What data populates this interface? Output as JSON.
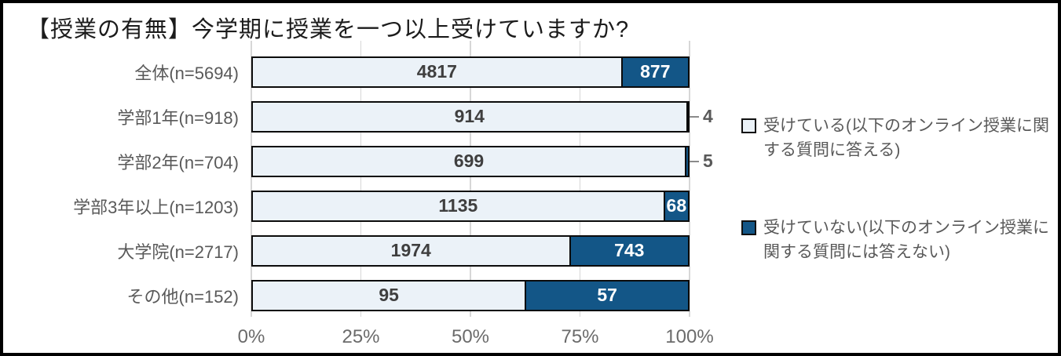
{
  "chart_data": {
    "type": "bar",
    "subtype": "horizontal-stacked-100pct",
    "title": "【授業の有無】今学期に授業を一つ以上受けていますか?",
    "categories": [
      "全体(n=5694)",
      "学部1年(n=918)",
      "学部2年(n=704)",
      "学部3年以上(n=1203)",
      "大学院(n=2717)",
      "その他(n=152)"
    ],
    "totals": [
      5694,
      918,
      704,
      1203,
      2717,
      152
    ],
    "series": [
      {
        "name": "受けている(以下のオンライン授業に関する質問に答える)",
        "values": [
          4817,
          914,
          699,
          1135,
          1974,
          95
        ],
        "color": "#ebf2f8",
        "label_color": "#3f3f3f"
      },
      {
        "name": "受けていない(以下のオンライン授業に関する質問には答えない)",
        "values": [
          877,
          4,
          5,
          68,
          743,
          57
        ],
        "color": "#135687",
        "label_color": "#ffffff"
      }
    ],
    "x_ticks": [
      "0%",
      "25%",
      "50%",
      "75%",
      "100%"
    ],
    "xlim": [
      0,
      100
    ],
    "grid": true,
    "legend_position": "right",
    "outside_labels": [
      {
        "category_index": 1,
        "value": 4
      },
      {
        "category_index": 2,
        "value": 5
      }
    ]
  },
  "style_colors": {
    "bar_border": "#0b0b0b",
    "gridline": "#d7d7d7",
    "axis_text": "#6b6b6b",
    "category_text": "#595959",
    "legend_text": "#595959",
    "frame_border": "#000000"
  }
}
